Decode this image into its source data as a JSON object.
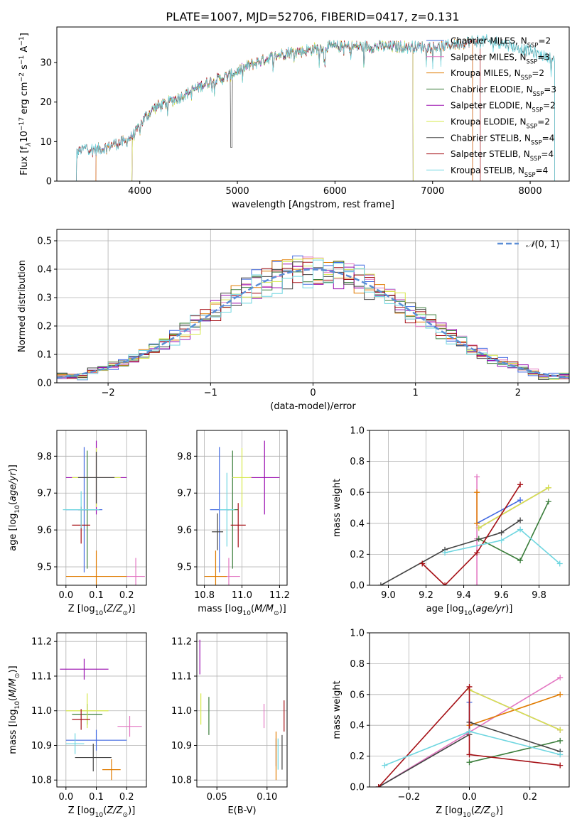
{
  "figure_title": "PLATE=1007, MJD=52706, FIBERID=0417, z=0.131",
  "colors": {
    "Chabrier MILES": "#4169e1",
    "Salpeter MILES": "#e377c2",
    "Kroupa MILES": "#e07b00",
    "Chabrier ELODIE": "#3a7d3a",
    "Salpeter ELODIE": "#9b10b0",
    "Kroupa ELODIE": "#d6e84a",
    "Chabrier STELIB": "#444444",
    "Salpeter STELIB": "#a50f15",
    "Kroupa STELIB": "#6fd6e0",
    "gauss": "#5b8ed6"
  },
  "chart_data": [
    {
      "type": "line",
      "panel": "spectrum",
      "title": "PLATE=1007, MJD=52706, FIBERID=0417, z=0.131",
      "xlabel": "wavelength [Angstrom, rest frame]",
      "ylabel": "Flux [f_λ 10^-17 erg cm^-2 s^-1 A^-1]",
      "xlim": [
        3150,
        8400
      ],
      "ylim": [
        0,
        39
      ],
      "xticks": [
        4000,
        5000,
        6000,
        7000,
        8000
      ],
      "yticks": [
        0,
        10,
        20,
        30
      ],
      "grid": false,
      "legend_position": "top-right",
      "series": [
        {
          "name": "Chabrier MILES, N_SSP=2",
          "range": [
            3550,
            7410
          ]
        },
        {
          "name": "Salpeter MILES, N_SSP=3",
          "range": [
            3550,
            7410
          ]
        },
        {
          "name": "Kroupa MILES, N_SSP=2",
          "range": [
            3550,
            7410
          ]
        },
        {
          "name": "Chabrier ELODIE, N_SSP=3",
          "range": [
            3920,
            6800
          ]
        },
        {
          "name": "Salpeter ELODIE, N_SSP=2",
          "range": [
            3920,
            6800
          ]
        },
        {
          "name": "Kroupa ELODIE, N_SSP=2",
          "range": [
            3920,
            6800
          ]
        },
        {
          "name": "Chabrier STELIB, N_SSP=4",
          "range": [
            3350,
            8250
          ]
        },
        {
          "name": "Salpeter STELIB, N_SSP=4",
          "range": [
            3350,
            7490
          ]
        },
        {
          "name": "Kroupa STELIB, N_SSP=4",
          "range": [
            3350,
            8250
          ]
        }
      ],
      "continuum": {
        "x": [
          3350,
          3450,
          3550,
          3650,
          3750,
          3850,
          3950,
          4050,
          4150,
          4300,
          4500,
          4700,
          4900,
          5100,
          5300,
          5500,
          5700,
          5900,
          6100,
          6300,
          6500,
          6700,
          6900,
          7100,
          7300,
          7500,
          7700,
          7900,
          8100,
          8250
        ],
        "y": [
          7,
          8.5,
          8,
          8.5,
          9.5,
          10,
          12,
          16,
          18.5,
          20,
          22.5,
          25,
          26.5,
          29,
          31,
          32.5,
          33,
          34,
          34,
          34,
          34,
          34,
          34,
          34,
          35,
          35.5,
          35,
          33.5,
          32,
          31
        ]
      }
    },
    {
      "type": "histogram",
      "panel": "residuals",
      "xlabel": "(data-model)/error",
      "ylabel": "Normed distribution",
      "xlim": [
        -2.5,
        2.5
      ],
      "ylim": [
        0,
        0.54
      ],
      "xticks": [
        -2,
        -1,
        0,
        1,
        2
      ],
      "yticks": [
        0,
        0.1,
        0.2,
        0.3,
        0.4,
        0.5
      ],
      "grid": true,
      "legend_position": "top-right",
      "gauss_label": "N(0,1)",
      "bin_width": 0.1
    },
    {
      "type": "scatter",
      "panel": "age-vs-Z",
      "xlabel": "Z [log10(Z/Z☉)]",
      "ylabel": "age  [log10(age/yr)]",
      "xlim": [
        -0.03,
        0.265
      ],
      "ylim": [
        9.45,
        9.87
      ],
      "xticks": [
        0.0,
        0.1,
        0.2
      ],
      "yticks": [
        9.5,
        9.6,
        9.7,
        9.8
      ],
      "grid": true,
      "points": [
        {
          "name": "Chabrier MILES",
          "x": 0.06,
          "y": 9.655,
          "xerr": 0.06,
          "yerr": 0.17
        },
        {
          "name": "Salpeter MILES",
          "x": 0.23,
          "y": 9.474,
          "xerr": 0.03,
          "yerr": 0.05
        },
        {
          "name": "Kroupa MILES",
          "x": 0.1,
          "y": 9.474,
          "xerr": 0.1,
          "yerr": 0.07
        },
        {
          "name": "Chabrier ELODIE",
          "x": 0.07,
          "y": 9.655,
          "xerr": 0.03,
          "yerr": 0.16
        },
        {
          "name": "Salpeter ELODIE",
          "x": 0.1,
          "y": 9.742,
          "xerr": 0.1,
          "yerr": 0.1
        },
        {
          "name": "Kroupa ELODIE",
          "x": 0.1,
          "y": 9.742,
          "xerr": 0.08,
          "yerr": 0.08
        },
        {
          "name": "Chabrier STELIB",
          "x": 0.1,
          "y": 9.742,
          "xerr": 0.06,
          "yerr": 0.07
        },
        {
          "name": "Salpeter STELIB",
          "x": 0.05,
          "y": 9.613,
          "xerr": 0.03,
          "yerr": 0.05
        },
        {
          "name": "Kroupa STELIB",
          "x": 0.05,
          "y": 9.655,
          "xerr": 0.06,
          "yerr": 0.05
        }
      ]
    },
    {
      "type": "scatter",
      "panel": "age-vs-mass",
      "xlabel": "mass [log10(M/M☉)]",
      "ylabel": "",
      "xlim": [
        10.76,
        11.24
      ],
      "ylim": [
        9.45,
        9.87
      ],
      "xticks": [
        10.8,
        11.0,
        11.2
      ],
      "yticks": [
        9.5,
        9.6,
        9.7,
        9.8
      ],
      "grid": true,
      "points": [
        {
          "name": "Chabrier MILES",
          "x": 10.88,
          "y": 9.655,
          "xerr": 0.05,
          "yerr": 0.17
        },
        {
          "name": "Salpeter MILES",
          "x": 10.93,
          "y": 9.474,
          "xerr": 0.06,
          "yerr": 0.05
        },
        {
          "name": "Kroupa MILES",
          "x": 10.86,
          "y": 9.474,
          "xerr": 0.06,
          "yerr": 0.07
        },
        {
          "name": "Chabrier ELODIE",
          "x": 10.95,
          "y": 9.655,
          "xerr": 0.03,
          "yerr": 0.16
        },
        {
          "name": "Salpeter ELODIE",
          "x": 11.12,
          "y": 9.742,
          "xerr": 0.08,
          "yerr": 0.1
        },
        {
          "name": "Kroupa ELODIE",
          "x": 11.0,
          "y": 9.742,
          "xerr": 0.05,
          "yerr": 0.08
        },
        {
          "name": "Chabrier STELIB",
          "x": 10.87,
          "y": 9.595,
          "xerr": 0.03,
          "yerr": 0.05
        },
        {
          "name": "Salpeter STELIB",
          "x": 10.98,
          "y": 9.613,
          "xerr": 0.04,
          "yerr": 0.06
        },
        {
          "name": "Kroupa STELIB",
          "x": 10.92,
          "y": 9.655,
          "xerr": 0.04,
          "yerr": 0.1
        }
      ]
    },
    {
      "type": "line",
      "panel": "mass-weight-vs-age",
      "xlabel": "age  [log10(age/yr)]",
      "ylabel": "mass weight",
      "xlim": [
        8.9,
        9.96
      ],
      "ylim": [
        0,
        1
      ],
      "xticks": [
        9.0,
        9.2,
        9.4,
        9.6,
        9.8
      ],
      "yticks": [
        0,
        0.2,
        0.4,
        0.6,
        0.8,
        1.0
      ],
      "grid": true,
      "series": [
        {
          "name": "Chabrier MILES",
          "x": [
            9.47,
            9.7
          ],
          "y": [
            0.4,
            0.55
          ]
        },
        {
          "name": "Salpeter MILES",
          "x": [
            9.47,
            9.47,
            9.47
          ],
          "y": [
            0.0,
            0.3,
            0.7
          ]
        },
        {
          "name": "Kroupa MILES",
          "x": [
            9.47,
            9.47
          ],
          "y": [
            0.4,
            0.6
          ]
        },
        {
          "name": "Chabrier ELODIE",
          "x": [
            9.48,
            9.7,
            9.85
          ],
          "y": [
            0.3,
            0.16,
            0.54
          ]
        },
        {
          "name": "Salpeter ELODIE",
          "x": [
            9.48,
            9.85
          ],
          "y": [
            0.37,
            0.63
          ]
        },
        {
          "name": "Kroupa ELODIE",
          "x": [
            9.48,
            9.85
          ],
          "y": [
            0.37,
            0.63
          ]
        },
        {
          "name": "Chabrier STELIB",
          "x": [
            8.96,
            9.3,
            9.6,
            9.7
          ],
          "y": [
            0.0,
            0.23,
            0.34,
            0.42
          ]
        },
        {
          "name": "Salpeter STELIB",
          "x": [
            9.18,
            9.3,
            9.47,
            9.7
          ],
          "y": [
            0.14,
            0.0,
            0.21,
            0.65
          ]
        },
        {
          "name": "Kroupa STELIB",
          "x": [
            9.3,
            9.6,
            9.7,
            9.91
          ],
          "y": [
            0.21,
            0.29,
            0.36,
            0.14
          ]
        }
      ]
    },
    {
      "type": "scatter",
      "panel": "mass-vs-Z",
      "xlabel": "Z [log10(Z/Z☉)]",
      "ylabel": "mass [log10(M/M☉)]",
      "xlim": [
        -0.03,
        0.265
      ],
      "ylim": [
        10.78,
        11.225
      ],
      "xticks": [
        0.0,
        0.1,
        0.2
      ],
      "yticks": [
        10.8,
        10.9,
        11.0,
        11.1,
        11.2
      ],
      "grid": true,
      "points": [
        {
          "name": "Chabrier MILES",
          "x": 0.1,
          "y": 10.915,
          "xerr": 0.1,
          "yerr": 0.03
        },
        {
          "name": "Salpeter MILES",
          "x": 0.21,
          "y": 10.955,
          "xerr": 0.04,
          "yerr": 0.03
        },
        {
          "name": "Kroupa MILES",
          "x": 0.15,
          "y": 10.83,
          "xerr": 0.03,
          "yerr": 0.03
        },
        {
          "name": "Chabrier ELODIE",
          "x": 0.07,
          "y": 10.99,
          "xerr": 0.05,
          "yerr": 0.03
        },
        {
          "name": "Salpeter ELODIE",
          "x": 0.06,
          "y": 11.12,
          "xerr": 0.08,
          "yerr": 0.03
        },
        {
          "name": "Kroupa ELODIE",
          "x": 0.07,
          "y": 11.0,
          "xerr": 0.07,
          "yerr": 0.05
        },
        {
          "name": "Chabrier STELIB",
          "x": 0.09,
          "y": 10.865,
          "xerr": 0.06,
          "yerr": 0.04
        },
        {
          "name": "Salpeter STELIB",
          "x": 0.05,
          "y": 10.975,
          "xerr": 0.03,
          "yerr": 0.03
        },
        {
          "name": "Kroupa STELIB",
          "x": 0.03,
          "y": 10.905,
          "xerr": 0.03,
          "yerr": 0.03
        }
      ]
    },
    {
      "type": "scatter",
      "panel": "mass-vs-EBV",
      "xlabel": "E(B-V)",
      "ylabel": "",
      "xlim": [
        0.03,
        0.12
      ],
      "ylim": [
        10.78,
        11.225
      ],
      "xticks": [
        0.05,
        0.1
      ],
      "yticks": [
        10.8,
        10.9,
        11.0,
        11.1,
        11.2
      ],
      "grid": true,
      "points": [
        {
          "name": "Chabrier MILES",
          "x": 0.109,
          "y": 10.88,
          "xerr": 0.0,
          "yerr": 0.04
        },
        {
          "name": "Salpeter MILES",
          "x": 0.097,
          "y": 10.985,
          "xerr": 0.0,
          "yerr": 0.035
        },
        {
          "name": "Kroupa MILES",
          "x": 0.109,
          "y": 10.87,
          "xerr": 0.0,
          "yerr": 0.07
        },
        {
          "name": "Chabrier ELODIE",
          "x": 0.042,
          "y": 10.985,
          "xerr": 0.0,
          "yerr": 0.055
        },
        {
          "name": "Salpeter ELODIE",
          "x": 0.033,
          "y": 11.155,
          "xerr": 0.0,
          "yerr": 0.05
        },
        {
          "name": "Kroupa ELODIE",
          "x": 0.034,
          "y": 11.005,
          "xerr": 0.0,
          "yerr": 0.045
        },
        {
          "name": "Chabrier STELIB",
          "x": 0.115,
          "y": 10.88,
          "xerr": 0.0,
          "yerr": 0.05
        },
        {
          "name": "Salpeter STELIB",
          "x": 0.117,
          "y": 10.985,
          "xerr": 0.0,
          "yerr": 0.045
        },
        {
          "name": "Kroupa STELIB",
          "x": 0.111,
          "y": 10.875,
          "xerr": 0.0,
          "yerr": 0.045
        }
      ]
    },
    {
      "type": "line",
      "panel": "mass-weight-vs-Z",
      "xlabel": "Z [log10(Z/Z☉)]",
      "ylabel": "mass weight",
      "xlim": [
        -0.33,
        0.33
      ],
      "ylim": [
        0,
        1
      ],
      "xticks": [
        -0.2,
        0.0,
        0.2
      ],
      "yticks": [
        0,
        0.2,
        0.4,
        0.6,
        0.8,
        1.0
      ],
      "grid": true,
      "series": [
        {
          "name": "Chabrier MILES",
          "x": [
            0.0,
            0.0
          ],
          "y": [
            0.42,
            0.55
          ]
        },
        {
          "name": "Salpeter MILES",
          "x": [
            -0.3,
            0.3
          ],
          "y": [
            0.0,
            0.71
          ]
        },
        {
          "name": "Kroupa MILES",
          "x": [
            0.0,
            0.3
          ],
          "y": [
            0.4,
            0.6
          ]
        },
        {
          "name": "Chabrier ELODIE",
          "x": [
            0.0,
            0.3
          ],
          "y": [
            0.16,
            0.3
          ]
        },
        {
          "name": "Salpeter ELODIE",
          "x": [
            0.0,
            0.3
          ],
          "y": [
            0.63,
            0.37
          ]
        },
        {
          "name": "Kroupa ELODIE",
          "x": [
            0.0,
            0.3
          ],
          "y": [
            0.63,
            0.37
          ]
        },
        {
          "name": "Chabrier STELIB",
          "x": [
            -0.3,
            0.0,
            0.0,
            0.3
          ],
          "y": [
            0.0,
            0.34,
            0.42,
            0.23
          ]
        },
        {
          "name": "Salpeter STELIB",
          "x": [
            -0.3,
            0.0,
            0.0,
            0.3
          ],
          "y": [
            0.0,
            0.65,
            0.21,
            0.14
          ]
        },
        {
          "name": "Kroupa STELIB",
          "x": [
            -0.28,
            0.0,
            0.3
          ],
          "y": [
            0.14,
            0.36,
            0.21
          ]
        }
      ]
    }
  ]
}
